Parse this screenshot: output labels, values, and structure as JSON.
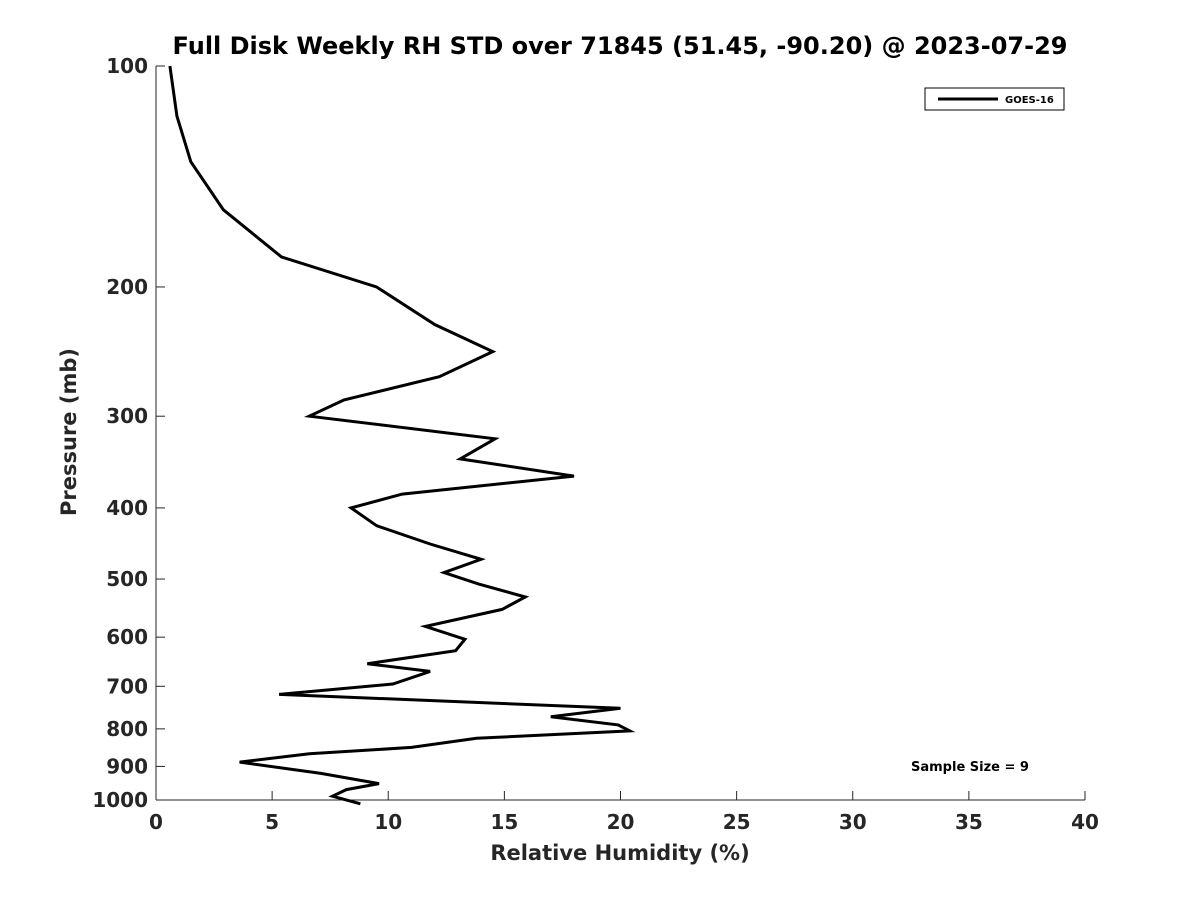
{
  "chart_data": {
    "type": "line",
    "title": "Full Disk Weekly RH STD over 71845 (51.45, -90.20) @ 2023-07-29",
    "xlabel": "Relative Humidity (%)",
    "ylabel": "Pressure (mb)",
    "xlim": [
      0,
      40
    ],
    "ylim": [
      100,
      1000
    ],
    "y_scale": "log",
    "y_inverted": true,
    "x_ticks": [
      0,
      5,
      10,
      15,
      20,
      25,
      30,
      35,
      40
    ],
    "y_ticks": [
      100,
      200,
      300,
      400,
      500,
      600,
      700,
      800,
      900,
      1000
    ],
    "grid": false,
    "legend_position": "top-right",
    "line_color": "#000000",
    "series": [
      {
        "name": "GOES-16",
        "x": [
          0.6,
          0.9,
          1.5,
          2.9,
          5.4,
          9.5,
          12.0,
          14.5,
          12.2,
          8.1,
          6.6,
          14.6,
          13.1,
          18.0,
          10.6,
          8.4,
          9.5,
          11.8,
          14.0,
          12.4,
          13.9,
          15.9,
          14.9,
          11.6,
          13.3,
          12.9,
          9.1,
          11.8,
          10.2,
          5.3,
          20.0,
          17.0,
          19.9,
          20.4,
          13.8,
          11.0,
          6.6,
          3.6,
          7.1,
          9.6,
          8.2,
          7.6,
          8.8
        ],
        "y": [
          100,
          117,
          135,
          157,
          182,
          200,
          225,
          245,
          265,
          285,
          300,
          322,
          343,
          362,
          383,
          400,
          423,
          448,
          470,
          490,
          508,
          529,
          550,
          580,
          604,
          626,
          652,
          668,
          695,
          718,
          750,
          770,
          790,
          805,
          824,
          848,
          865,
          888,
          920,
          950,
          968,
          988,
          1012
        ]
      }
    ],
    "annotations": [
      "Sample Size = 9"
    ]
  }
}
